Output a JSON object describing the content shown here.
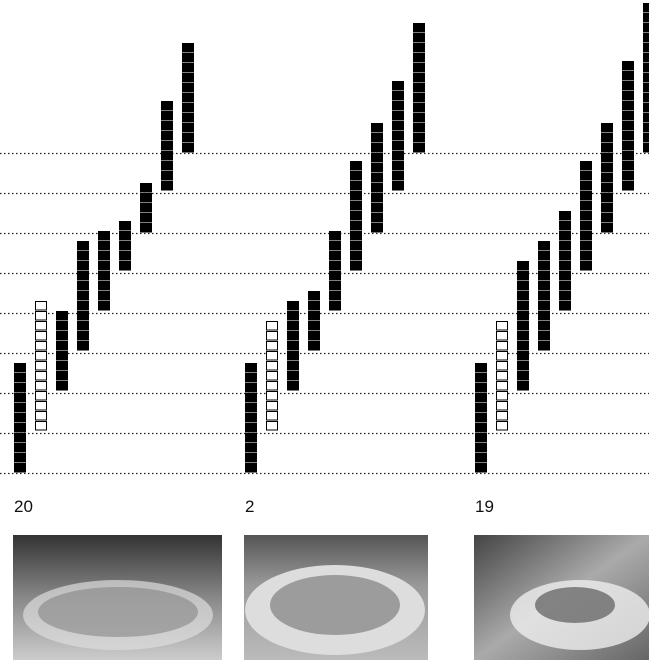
{
  "panels": [
    {
      "label": "20"
    },
    {
      "label": "2"
    },
    {
      "label": "19"
    }
  ]
}
